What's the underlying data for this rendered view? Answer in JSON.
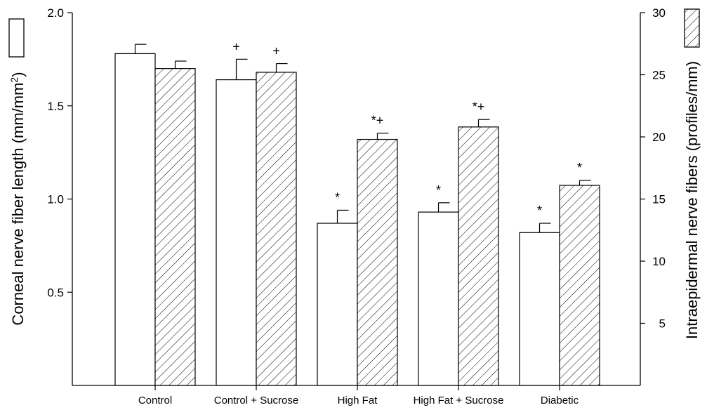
{
  "chart_data": {
    "type": "bar",
    "categories": [
      "Control",
      "Control + Sucrose",
      "High Fat",
      "High Fat + Sucrose",
      "Diabetic"
    ],
    "left_axis": {
      "label": "Corneal nerve fiber length (mm/mm",
      "label_sup": "2",
      "label_end": ")",
      "ylim": [
        0.0,
        2.0
      ],
      "ticks": [
        "0.5",
        "1.0",
        "1.5",
        "2.0"
      ],
      "tick_values": [
        0.5,
        1.0,
        1.5,
        2.0
      ]
    },
    "right_axis": {
      "label": "Intraepidermal nerve fibers (profiles/mm)",
      "ylim": [
        0,
        30
      ],
      "ticks": [
        "5",
        "10",
        "15",
        "20",
        "25",
        "30"
      ],
      "tick_values": [
        5,
        10,
        15,
        20,
        25,
        30
      ]
    },
    "series": [
      {
        "key": "corneal",
        "axis": "left",
        "fill": "open",
        "values": [
          1.78,
          1.64,
          0.87,
          0.93,
          0.82
        ],
        "errors": [
          0.05,
          0.11,
          0.07,
          0.05,
          0.05
        ],
        "markers": [
          "",
          "+",
          "*",
          "*",
          "*"
        ]
      },
      {
        "key": "intraepidermal",
        "axis": "right",
        "fill": "hatched",
        "values": [
          25.5,
          25.2,
          19.8,
          20.8,
          16.1
        ],
        "errors": [
          0.6,
          0.7,
          0.5,
          0.6,
          0.4
        ],
        "markers": [
          "",
          "+",
          "*+",
          "*+",
          "*"
        ]
      }
    ]
  }
}
